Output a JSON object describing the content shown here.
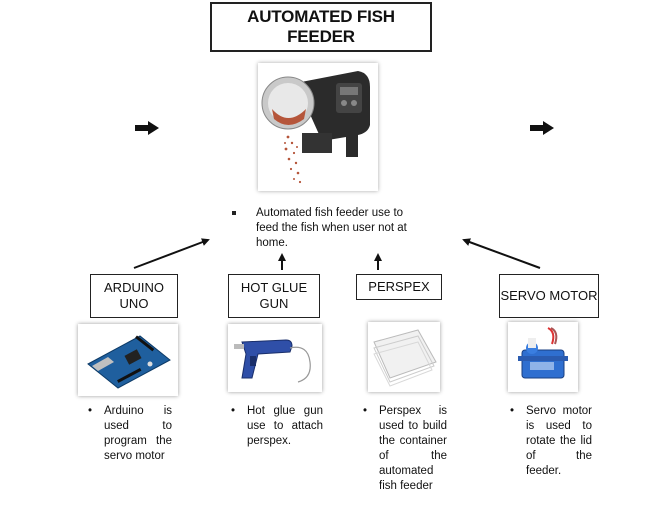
{
  "title": "AUTOMATED FISH FEEDER",
  "main_description": "Automated fish feeder use to feed the fish when user not at home.",
  "components": [
    {
      "label": "ARDUINO UNO",
      "description": "Arduino is used to program the servo motor",
      "image_icon": "arduino-board-icon"
    },
    {
      "label": "HOT GLUE GUN",
      "description": "Hot glue gun use to attach perspex.",
      "image_icon": "glue-gun-icon"
    },
    {
      "label": "PERSPEX",
      "description": "Perspex is used to build the container of the automated fish feeder",
      "image_icon": "perspex-sheet-icon"
    },
    {
      "label": "SERVO MOTOR",
      "description": "Servo motor is used to rotate the lid of the feeder.",
      "image_icon": "servo-motor-icon"
    }
  ],
  "bullet_glyph": "•",
  "colors": {
    "line": "#111111",
    "accent_blue": "#1f4e9a",
    "feeder_body": "#2b2b2b",
    "food": "#b5553a"
  }
}
